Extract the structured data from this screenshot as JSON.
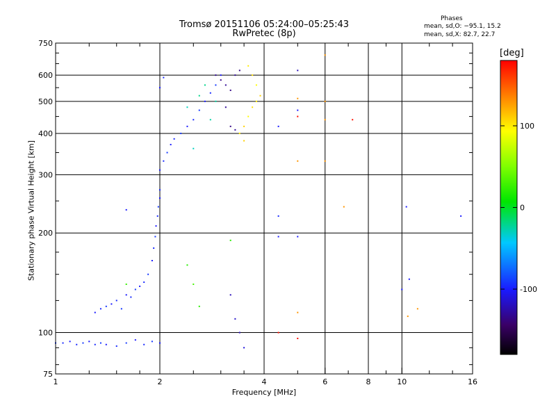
{
  "title_line1": "Tromsø 20151106 05:24:00–05:25:43",
  "title_line2": "RwPretec (8p)",
  "phases": {
    "title": "Phases",
    "o_line": "mean, sd,O: −95.1, 15.2",
    "x_line": "mean, sd,X:  82.7, 22.7"
  },
  "colorbar": {
    "unit": "[deg]",
    "ticks": [
      {
        "label": "100",
        "value": 100
      },
      {
        "label": "0",
        "value": 0
      },
      {
        "label": "-100",
        "value": -100
      }
    ],
    "range": [
      -180,
      180
    ]
  },
  "chart_data": {
    "type": "scatter",
    "title": "Tromsø 20151106 05:24:00–05:25:43",
    "subtitle": "RwPretec (8p)",
    "xlabel": "Frequency [MHz]",
    "ylabel": "Stationary phase Virtual Height [km]",
    "x_scale": "log",
    "y_scale": "log",
    "xlim": [
      1,
      16
    ],
    "ylim": [
      75,
      750
    ],
    "x_ticks": [
      {
        "value": 1,
        "label": "1"
      },
      {
        "value": 2,
        "label": "2"
      },
      {
        "value": 4,
        "label": "4"
      },
      {
        "value": 6,
        "label": "6"
      },
      {
        "value": 8,
        "label": "8"
      },
      {
        "value": 10,
        "label": "10"
      },
      {
        "value": 16,
        "label": "16"
      }
    ],
    "y_ticks": [
      {
        "value": 75,
        "label": "75"
      },
      {
        "value": 100,
        "label": "100"
      },
      {
        "value": 200,
        "label": "200"
      },
      {
        "value": 300,
        "label": "300"
      },
      {
        "value": 400,
        "label": "400"
      },
      {
        "value": 500,
        "label": "500"
      },
      {
        "value": 600,
        "label": "600"
      },
      {
        "value": 750,
        "label": "750"
      }
    ],
    "x_gridlines": [
      2,
      4,
      6,
      8,
      10
    ],
    "y_gridlines": [
      100,
      200,
      300,
      400,
      500,
      600
    ],
    "color_by": "phase [deg]",
    "series": [
      {
        "points": [
          [
            1.0,
            93,
            -90
          ],
          [
            1.05,
            93,
            -95
          ],
          [
            1.1,
            94,
            -100
          ],
          [
            1.15,
            92,
            -95
          ],
          [
            1.2,
            93,
            -90
          ],
          [
            1.25,
            94,
            -100
          ],
          [
            1.3,
            92,
            -95
          ],
          [
            1.35,
            93,
            -90
          ],
          [
            1.4,
            92,
            -100
          ],
          [
            1.5,
            91,
            -95
          ],
          [
            1.6,
            93,
            -90
          ],
          [
            1.7,
            95,
            -100
          ],
          [
            1.8,
            92,
            -95
          ],
          [
            1.9,
            94,
            -90
          ],
          [
            2.0,
            93,
            -100
          ],
          [
            1.3,
            115,
            -100
          ],
          [
            1.35,
            118,
            -95
          ],
          [
            1.4,
            120,
            -90
          ],
          [
            1.45,
            122,
            -100
          ],
          [
            1.5,
            125,
            -95
          ],
          [
            1.55,
            118,
            -90
          ],
          [
            1.6,
            130,
            -100
          ],
          [
            1.65,
            128,
            -95
          ],
          [
            1.7,
            135,
            -90
          ],
          [
            1.75,
            138,
            -100
          ],
          [
            1.8,
            142,
            -95
          ],
          [
            1.85,
            150,
            -90
          ],
          [
            1.9,
            165,
            -100
          ],
          [
            1.92,
            180,
            -95
          ],
          [
            1.94,
            195,
            -90
          ],
          [
            1.95,
            210,
            -100
          ],
          [
            1.97,
            225,
            -95
          ],
          [
            1.98,
            240,
            -90
          ],
          [
            2.0,
            255,
            -100
          ],
          [
            2.0,
            270,
            -95
          ],
          [
            2.0,
            310,
            -100
          ],
          [
            2.05,
            330,
            -95
          ],
          [
            2.1,
            350,
            -90
          ],
          [
            2.15,
            370,
            -100
          ],
          [
            2.2,
            385,
            -95
          ],
          [
            2.3,
            400,
            -90
          ],
          [
            2.4,
            420,
            -100
          ],
          [
            2.5,
            440,
            -95
          ],
          [
            2.6,
            470,
            -90
          ],
          [
            2.7,
            500,
            -100
          ],
          [
            2.8,
            530,
            -95
          ],
          [
            2.9,
            560,
            -90
          ],
          [
            3.0,
            600,
            -100
          ],
          [
            2.0,
            550,
            -100
          ],
          [
            2.05,
            590,
            -95
          ],
          [
            1.6,
            235,
            -100
          ]
        ]
      },
      {
        "points": [
          [
            2.9,
            600,
            -130
          ],
          [
            3.0,
            580,
            -135
          ],
          [
            3.1,
            560,
            -130
          ],
          [
            3.2,
            540,
            -135
          ],
          [
            3.3,
            600,
            -130
          ],
          [
            3.4,
            620,
            -135
          ],
          [
            3.1,
            480,
            -130
          ],
          [
            3.2,
            420,
            -135
          ],
          [
            3.3,
            410,
            -130
          ]
        ]
      },
      {
        "points": [
          [
            3.4,
            400,
            100
          ],
          [
            3.5,
            420,
            110
          ],
          [
            3.6,
            450,
            95
          ],
          [
            3.7,
            480,
            105
          ],
          [
            3.8,
            500,
            100
          ],
          [
            3.9,
            520,
            110
          ],
          [
            3.8,
            560,
            95
          ],
          [
            3.7,
            600,
            105
          ],
          [
            3.6,
            640,
            100
          ],
          [
            3.5,
            380,
            110
          ]
        ]
      },
      {
        "points": [
          [
            2.4,
            480,
            -30
          ],
          [
            2.6,
            520,
            -20
          ],
          [
            2.8,
            440,
            -25
          ],
          [
            2.5,
            360,
            -30
          ],
          [
            2.7,
            560,
            -20
          ],
          [
            2.9,
            500,
            -25
          ]
        ]
      },
      {
        "points": [
          [
            2.4,
            160,
            20
          ],
          [
            2.5,
            140,
            30
          ],
          [
            2.6,
            120,
            20
          ],
          [
            1.6,
            140,
            25
          ],
          [
            3.2,
            190,
            20
          ]
        ]
      },
      {
        "points": [
          [
            3.2,
            130,
            -120
          ],
          [
            3.3,
            110,
            -115
          ],
          [
            3.4,
            100,
            -120
          ],
          [
            3.5,
            90,
            -110
          ]
        ]
      },
      {
        "points": [
          [
            4.4,
            225,
            -95
          ],
          [
            4.4,
            195,
            -100
          ],
          [
            5.0,
            195,
            -100
          ],
          [
            5.0,
            620,
            -120
          ],
          [
            4.4,
            420,
            -100
          ],
          [
            10.3,
            240,
            -100
          ],
          [
            14.8,
            225,
            -100
          ],
          [
            10.0,
            135,
            -100
          ],
          [
            10.5,
            145,
            -100
          ],
          [
            5.0,
            470,
            -100
          ]
        ]
      },
      {
        "points": [
          [
            6.0,
            440,
            130
          ],
          [
            6.0,
            330,
            130
          ],
          [
            5.0,
            330,
            130
          ],
          [
            6.8,
            240,
            130
          ],
          [
            11.1,
            118,
            130
          ],
          [
            10.4,
            112,
            130
          ],
          [
            5.0,
            115,
            130
          ],
          [
            5.0,
            510,
            130
          ],
          [
            6.0,
            690,
            130
          ],
          [
            6.0,
            500,
            130
          ]
        ]
      },
      {
        "points": [
          [
            5.0,
            450,
            175
          ],
          [
            7.2,
            440,
            175
          ],
          [
            5.0,
            96,
            175
          ],
          [
            4.4,
            100,
            175
          ]
        ]
      }
    ]
  }
}
